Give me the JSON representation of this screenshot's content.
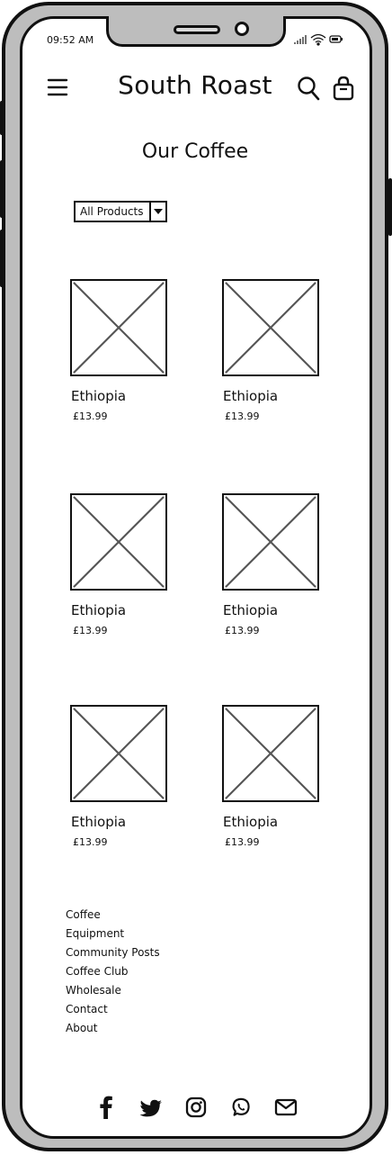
{
  "status_bar": {
    "time": "09:52 AM"
  },
  "header": {
    "brand": "South Roast"
  },
  "page": {
    "title": "Our Coffee"
  },
  "filter": {
    "selected": "All Products"
  },
  "products": [
    {
      "name": "Ethiopia",
      "price": "£13.99"
    },
    {
      "name": "Ethiopia",
      "price": "£13.99"
    },
    {
      "name": "Ethiopia",
      "price": "£13.99"
    },
    {
      "name": "Ethiopia",
      "price": "£13.99"
    },
    {
      "name": "Ethiopia",
      "price": "£13.99"
    },
    {
      "name": "Ethiopia",
      "price": "£13.99"
    }
  ],
  "footer": {
    "links": [
      "Coffee",
      "Equipment",
      "Community Posts",
      "Coffee Club",
      "Wholesale",
      "Contact",
      "About"
    ],
    "social_icons": [
      "facebook-icon",
      "twitter-icon",
      "instagram-icon",
      "whatsapp-icon",
      "mail-icon"
    ]
  },
  "colors": {
    "frame": "#bdbdbd",
    "ink": "#111111",
    "placeholder": "#555555",
    "background": "#ffffff"
  }
}
